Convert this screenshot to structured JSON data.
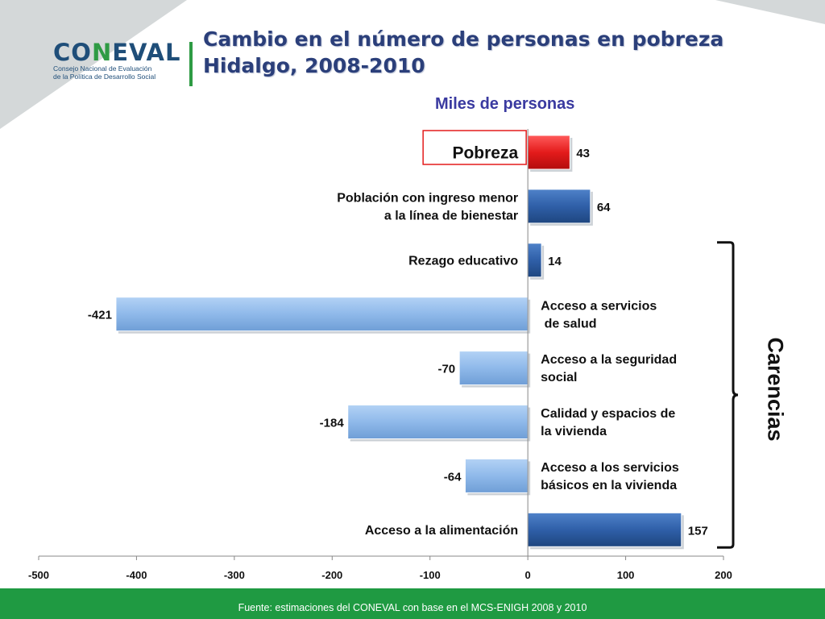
{
  "header": {
    "brand": "CONEVAL",
    "brand_accent": "N",
    "brand_sub_line1": "Consejo Nacional de Evaluación",
    "brand_sub_line2": "de la Política de Desarrollo Social",
    "title_line1": "Cambio en el número de personas en pobreza",
    "title_line2": "Hidalgo, 2008-2010"
  },
  "chart_data": {
    "type": "bar",
    "orientation": "horizontal",
    "units_label": "Miles de personas",
    "categories": [
      "Pobreza",
      "Población con ingreso menor a la línea de bienestar",
      "Rezago educativo",
      "Acceso a servicios de salud",
      "Acceso a  la seguridad social",
      "Calidad y espacios de la vivienda",
      "Acceso a los servicios básicos en la vivienda",
      "Acceso a la alimentación"
    ],
    "label_lines": [
      [
        "Pobreza"
      ],
      [
        "Población con ingreso menor",
        "a la línea de bienestar"
      ],
      [
        "Rezago educativo"
      ],
      [
        "Acceso a servicios",
        " de salud"
      ],
      [
        "Acceso a  la seguridad",
        "social"
      ],
      [
        "Calidad y espacios de",
        "la vivienda"
      ],
      [
        "Acceso a los servicios",
        "básicos en la vivienda"
      ],
      [
        "Acceso a la alimentación"
      ]
    ],
    "values": [
      43,
      64,
      14,
      -421,
      -70,
      -184,
      -64,
      157
    ],
    "value_labels": [
      "43",
      "64",
      "14",
      "-421",
      "-70",
      "-184",
      "-64",
      "157"
    ],
    "bar_colors": [
      "#e41b1b",
      "#2f5fa8",
      "#2f5fa8",
      "#8fb9ea",
      "#8fb9ea",
      "#8fb9ea",
      "#8fb9ea",
      "#2f5fa8"
    ],
    "highlight_category": "Pobreza",
    "xlim": [
      -500,
      200
    ],
    "xticks": [
      -500,
      -400,
      -300,
      -200,
      -100,
      0,
      100,
      200
    ],
    "xtick_labels": [
      "-500",
      "-400",
      "-300",
      "-200",
      "-100",
      "0",
      "100",
      "200"
    ],
    "grid": false,
    "bracket_label": "Carencias",
    "bracket_range": [
      "Rezago educativo",
      "Acceso a la alimentación"
    ]
  },
  "footer": {
    "source": "Fuente: estimaciones del CONEVAL con base en el MCS-ENIGH 2008 y 2010"
  }
}
